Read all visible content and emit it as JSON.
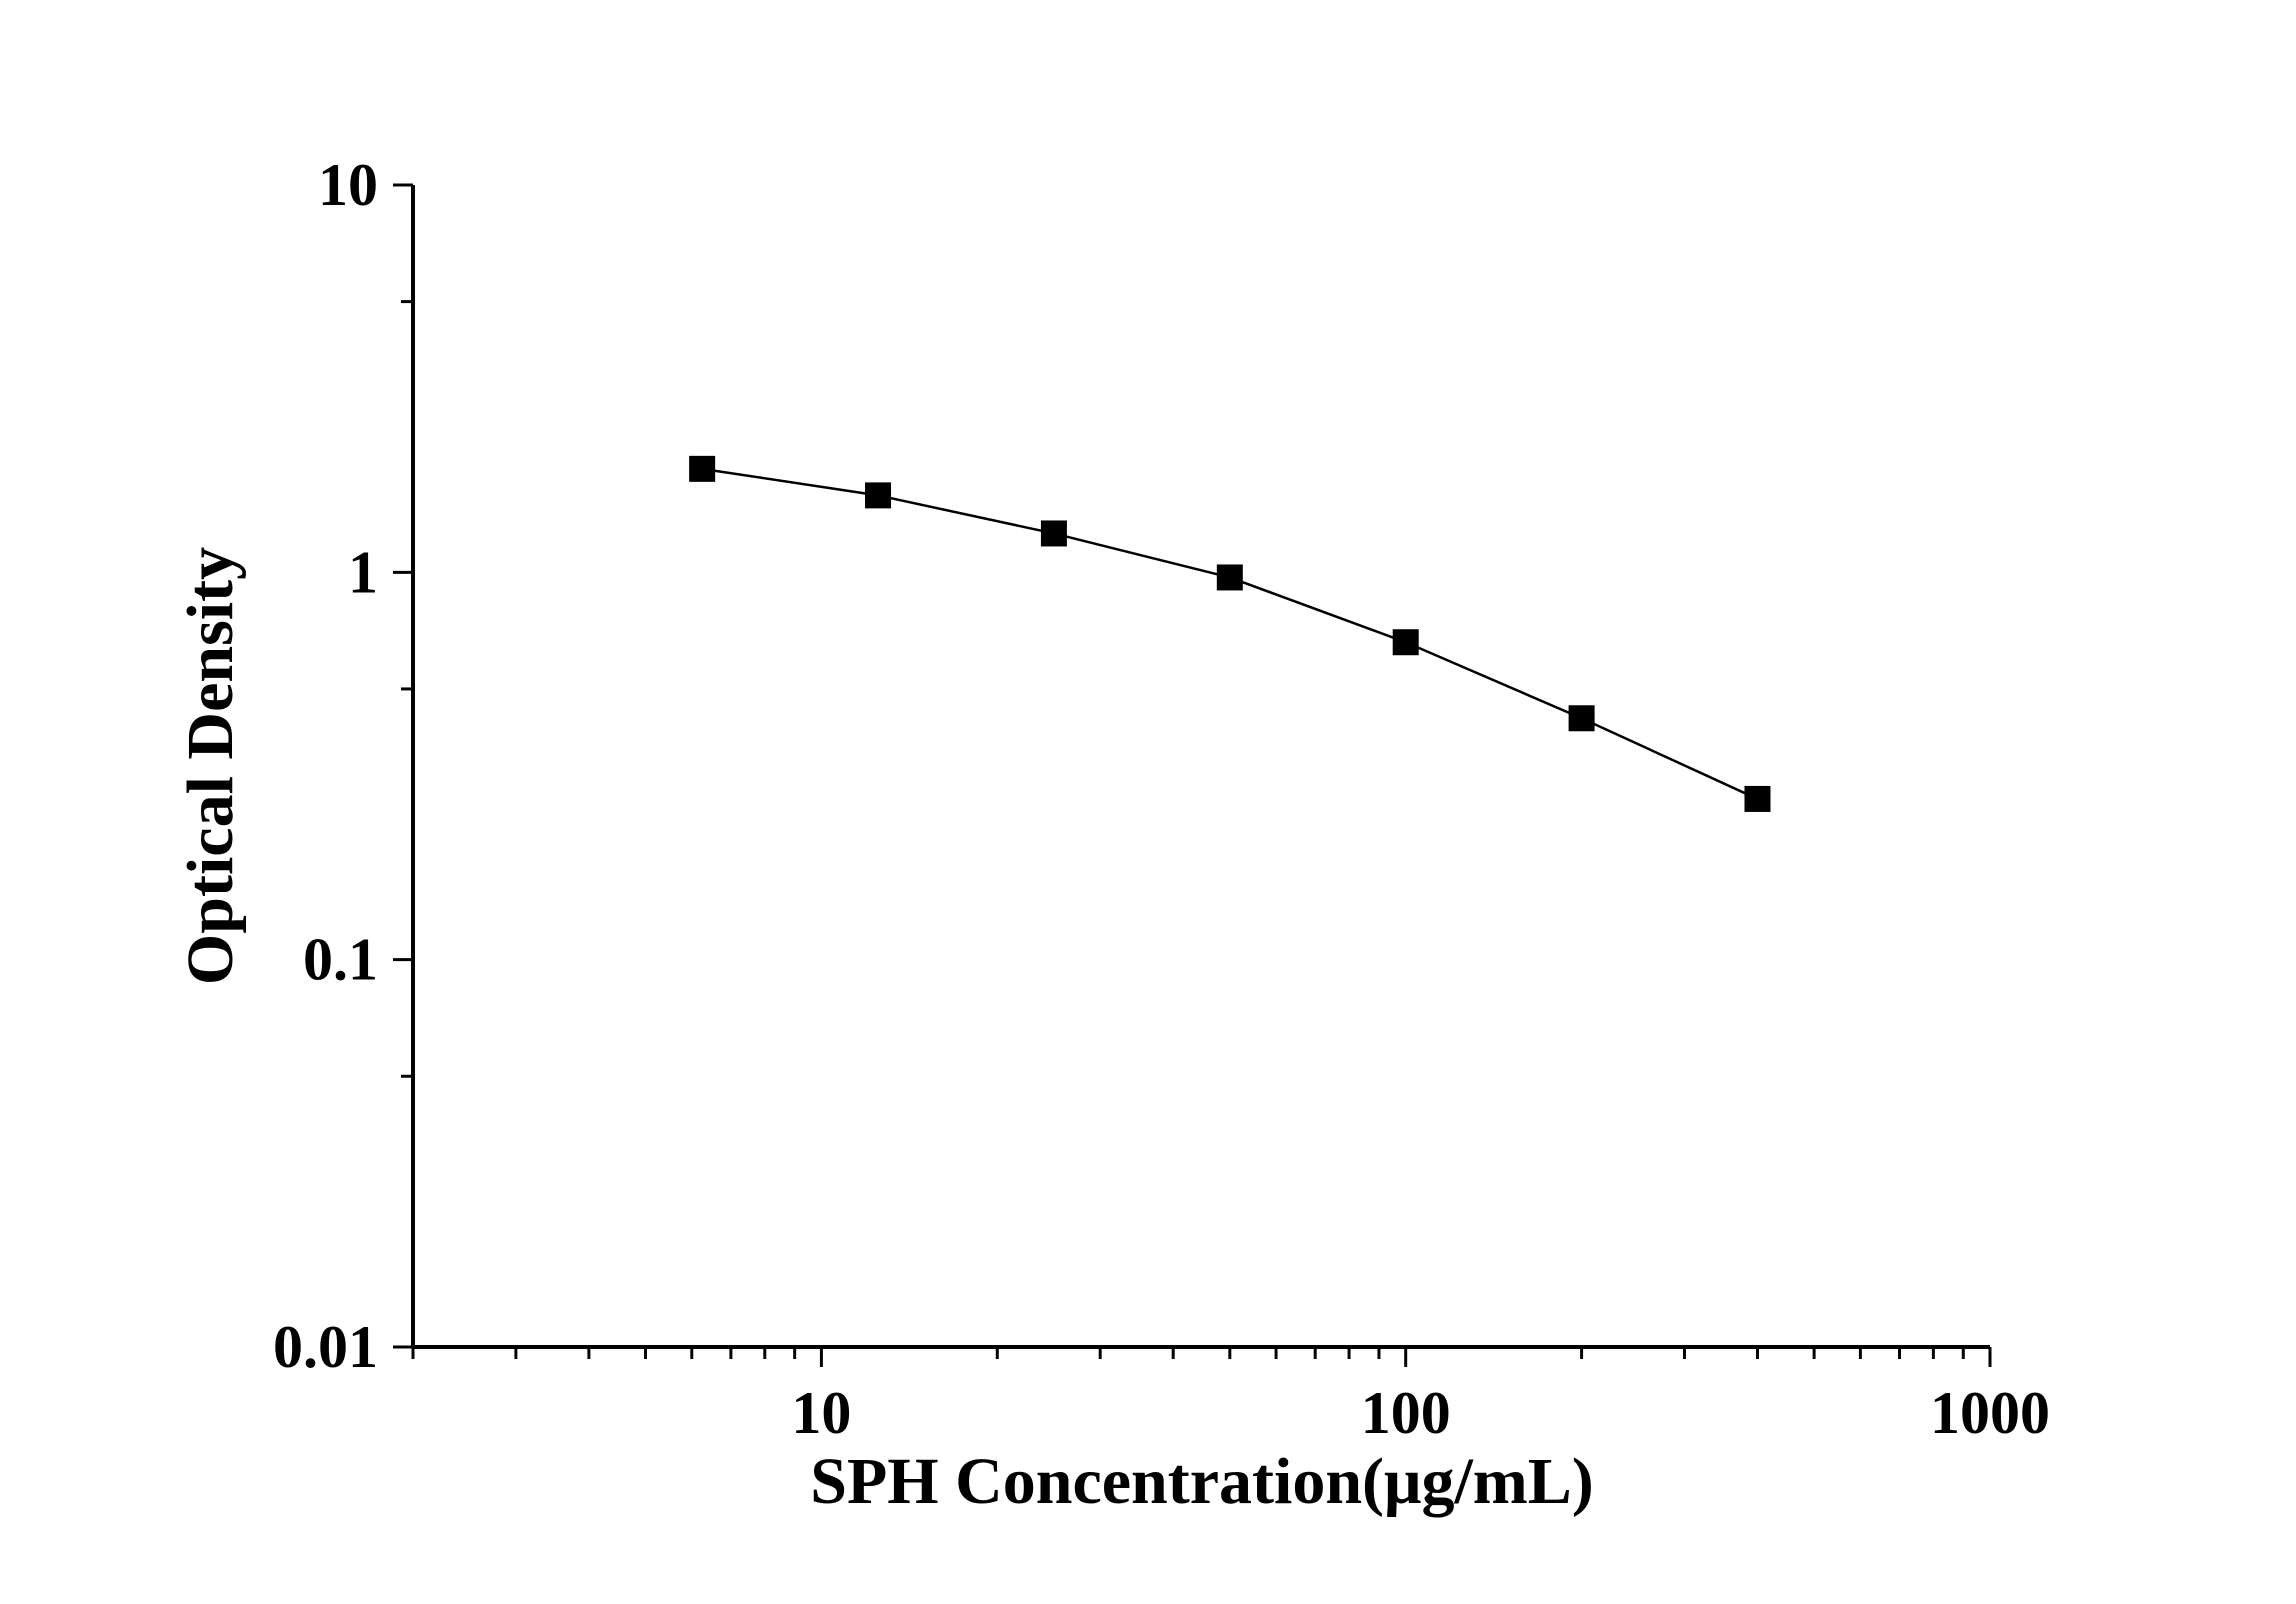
{
  "chart_data": {
    "type": "scatter",
    "title": "",
    "xlabel": "SPH Concentration(μg/mL)",
    "ylabel": "Optical Density",
    "xscale": "log",
    "yscale": "log",
    "xlim": [
      2,
      1000
    ],
    "ylim": [
      0.01,
      10
    ],
    "x_ticks": [
      "10",
      "100",
      "1000"
    ],
    "y_ticks": [
      "0.01",
      "0.1",
      "1",
      "10"
    ],
    "grid": false,
    "legend": "none",
    "marker": "square",
    "line": "connected",
    "color": "#000000",
    "series": [
      {
        "x": [
          6.25,
          12.5,
          25,
          50,
          100,
          200,
          400
        ],
        "y": [
          1.85,
          1.58,
          1.26,
          0.97,
          0.66,
          0.42,
          0.26
        ]
      }
    ]
  }
}
